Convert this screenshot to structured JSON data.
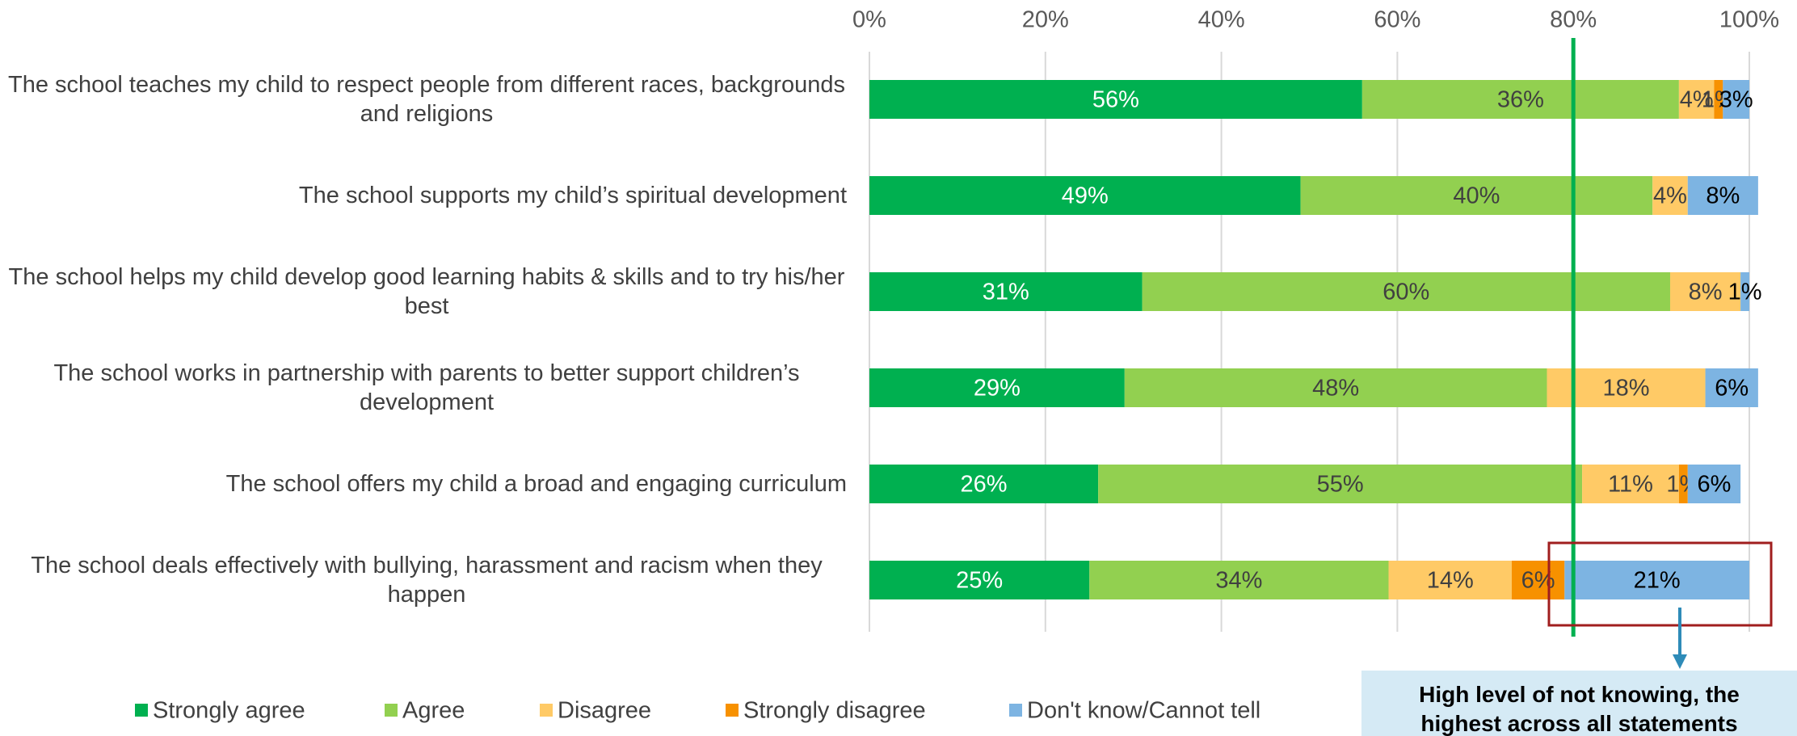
{
  "chart_data": {
    "type": "stacked-barh",
    "categories": [
      "The school teaches my child to respect people from different races, backgrounds and religions",
      "The school supports my child’s spiritual development",
      "The school helps my child develop good learning habits & skills and to try his/her best",
      "The school works in partnership with parents to better support children’s development",
      "The school offers my child a broad and engaging curriculum",
      "The school deals effectively with bullying, harassment and racism when they happen"
    ],
    "series": [
      {
        "name": "Strongly agree",
        "color": "#00b050",
        "label_color": "#ffffff",
        "values": [
          56,
          49,
          31,
          29,
          26,
          25
        ]
      },
      {
        "name": "Agree",
        "color": "#92d050",
        "label_color": "#404040",
        "values": [
          36,
          40,
          60,
          48,
          55,
          34
        ]
      },
      {
        "name": "Disagree",
        "color": "#ffca66",
        "label_color": "#404040",
        "values": [
          4,
          4,
          8,
          18,
          11,
          14
        ]
      },
      {
        "name": "Strongly disagree",
        "color": "#f79100",
        "label_color": "#404040",
        "values": [
          1,
          null,
          null,
          null,
          1,
          6
        ]
      },
      {
        "name": "Don't know/Cannot tell",
        "color": "#7db4e2",
        "label_color": "#000000",
        "values": [
          3,
          8,
          1,
          6,
          6,
          21
        ]
      }
    ],
    "value_labels": [
      [
        "56%",
        "49%",
        "31%",
        "29%",
        "26%",
        "25%"
      ],
      [
        "36%",
        "40%",
        "60%",
        "48%",
        "55%",
        "34%"
      ],
      [
        "4%",
        "4%",
        "8%",
        "18%",
        "11%",
        "14%"
      ],
      [
        "1%",
        null,
        null,
        null,
        "1%",
        "6%"
      ],
      [
        "3%",
        "8%",
        "1%",
        "6%",
        "6%",
        "21%"
      ]
    ],
    "xlim": [
      0,
      100
    ],
    "xticks": [
      {
        "value": 0,
        "label": "0%"
      },
      {
        "value": 20,
        "label": "20%"
      },
      {
        "value": 40,
        "label": "40%"
      },
      {
        "value": 60,
        "label": "60%"
      },
      {
        "value": 80,
        "label": "80%"
      },
      {
        "value": 100,
        "label": "100%"
      }
    ],
    "grid": true,
    "reference_line": {
      "value": 80,
      "color": "#00b050"
    },
    "annotation": "High level of not knowing, the highest across all statements"
  }
}
